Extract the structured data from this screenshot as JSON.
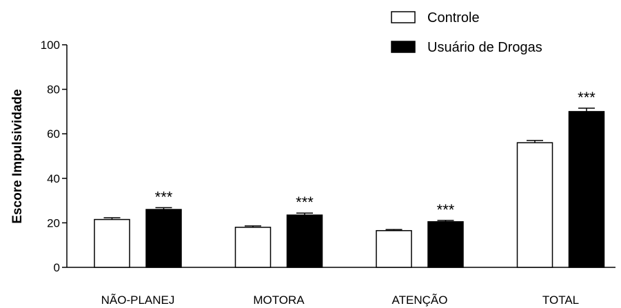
{
  "chart_data": {
    "type": "bar",
    "title": "",
    "xlabel": "",
    "ylabel": "Escore Impulsividade",
    "ylim": [
      0,
      100
    ],
    "yticks": [
      0,
      20,
      40,
      60,
      80,
      100
    ],
    "categories": [
      "NÃO-PLANEJ",
      "MOTORA",
      "ATENÇÃO",
      "TOTAL"
    ],
    "series": [
      {
        "name": "Controle",
        "values": [
          21.5,
          18,
          16.5,
          56
        ],
        "errors": [
          0.8,
          0.6,
          0.5,
          1.0
        ],
        "color": "#ffffff"
      },
      {
        "name": "Usuário de Drogas",
        "values": [
          26,
          23.5,
          20.5,
          70
        ],
        "errors": [
          0.8,
          0.9,
          0.6,
          1.5
        ],
        "color": "#000000"
      }
    ],
    "annotations": [
      {
        "category": "NÃO-PLANEJ",
        "series": "Usuário de Drogas",
        "text": "***"
      },
      {
        "category": "MOTORA",
        "series": "Usuário de Drogas",
        "text": "***"
      },
      {
        "category": "ATENÇÃO",
        "series": "Usuário de Drogas",
        "text": "***"
      },
      {
        "category": "TOTAL",
        "series": "Usuário de Drogas",
        "text": "***"
      }
    ],
    "legend_position": "top-right",
    "grid": false
  }
}
